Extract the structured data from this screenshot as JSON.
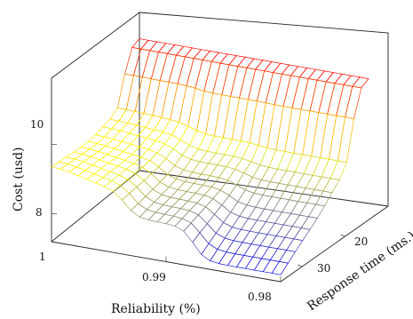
{
  "chart_data": {
    "type": "surface3d",
    "title": "",
    "xlabel": "Reliability (%)",
    "ylabel": "Response time (ms.)",
    "zlabel": "Cost (usd)",
    "x_ticks": [
      "1",
      "0.99",
      "0.98"
    ],
    "x_tick_values": [
      1.0,
      0.99,
      0.98
    ],
    "y_ticks": [
      "20",
      "30"
    ],
    "y_tick_values": [
      20,
      30
    ],
    "z_ticks": [
      "8",
      "10"
    ],
    "z_tick_values": [
      8,
      10
    ],
    "xlim": [
      0.98,
      1.0
    ],
    "ylim": [
      10,
      35
    ],
    "zlim": [
      7.2,
      11.9
    ],
    "colormap": [
      "#0000ff",
      "#ffff00",
      "#ff0000"
    ],
    "grid_size": [
      26,
      12
    ],
    "surface_description_levels": {
      "far_edge_cost": 11.0,
      "near_low_region_cost": 7.3,
      "mid_plateau_cost": 9.0
    }
  }
}
